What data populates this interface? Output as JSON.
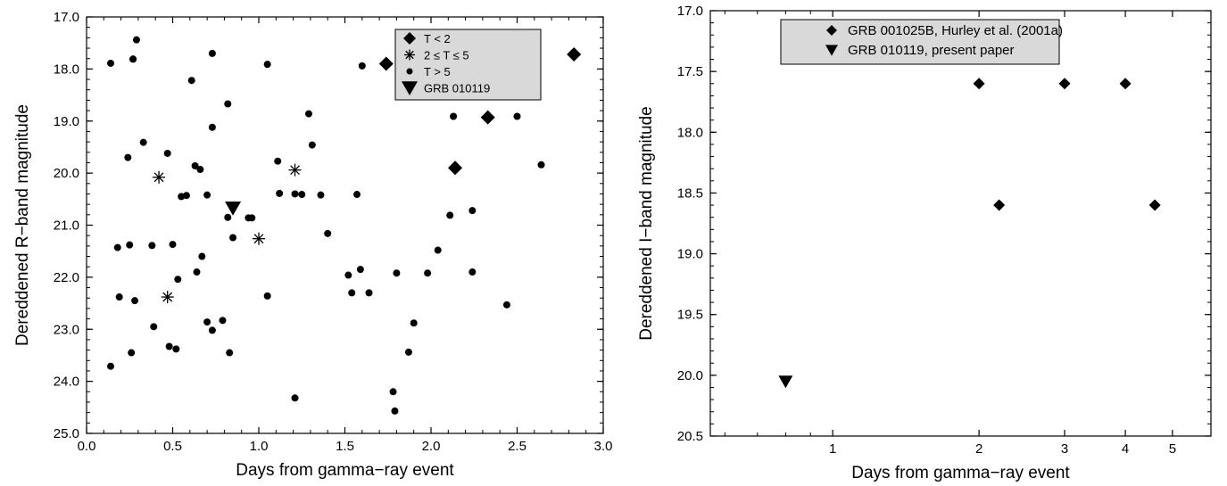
{
  "chart_data": [
    {
      "type": "scatter",
      "xlabel": "Days from gamma−ray event",
      "ylabel": "Dereddened R−band magnitude",
      "xlim": [
        0,
        3
      ],
      "ylim": [
        25,
        17
      ],
      "y_inverted": true,
      "x_ticks": [
        "0.0",
        "0.5",
        "1.0",
        "1.5",
        "2.0",
        "2.5",
        "3.0"
      ],
      "y_ticks": [
        "17.0",
        "18.0",
        "19.0",
        "20.0",
        "21.0",
        "22.0",
        "23.0",
        "24.0",
        "25.0"
      ],
      "legend_position": "top-right",
      "series": [
        {
          "name": "T < 2",
          "marker": "diamond",
          "x": [
            1.74,
            2.14,
            2.33,
            2.83
          ],
          "y": [
            17.9,
            19.9,
            18.93,
            17.72
          ]
        },
        {
          "name": "2 ≤ T ≤ 5",
          "marker": "asterisk",
          "x": [
            0.42,
            0.47,
            1.0,
            1.21
          ],
          "y": [
            20.08,
            22.38,
            21.26,
            19.94
          ]
        },
        {
          "name": "T > 5",
          "marker": "dot",
          "x": [
            0.14,
            0.27,
            0.29,
            0.27,
            0.61,
            0.73,
            0.82,
            1.05,
            1.29,
            1.6,
            2.13,
            2.5,
            0.73,
            0.33,
            0.24,
            0.47,
            1.31,
            0.63,
            0.66,
            0.96,
            2.64,
            1.11,
            1.21,
            0.55,
            0.58,
            0.7,
            1.12,
            1.36,
            1.57,
            1.25,
            0.82,
            0.94,
            2.11,
            2.24,
            0.18,
            0.25,
            0.38,
            0.5,
            0.85,
            1.4,
            2.04,
            0.67,
            0.53,
            0.64,
            1.05,
            1.52,
            1.59,
            1.8,
            1.98,
            2.24,
            0.19,
            0.28,
            1.54,
            1.64,
            0.7,
            0.79,
            1.9,
            0.39,
            0.73,
            2.44,
            0.48,
            0.52,
            0.26,
            0.83,
            1.87,
            0.14,
            1.21,
            1.78,
            1.79
          ],
          "y": [
            17.89,
            17.81,
            17.44,
            17.81,
            18.22,
            17.7,
            18.67,
            17.91,
            18.86,
            17.94,
            18.91,
            18.91,
            19.12,
            19.41,
            19.7,
            19.62,
            19.46,
            19.86,
            19.93,
            20.86,
            19.84,
            19.77,
            20.4,
            20.45,
            20.43,
            20.42,
            20.39,
            20.42,
            20.41,
            20.41,
            20.85,
            20.86,
            20.81,
            20.72,
            21.43,
            21.38,
            21.39,
            21.37,
            21.24,
            21.16,
            21.48,
            21.6,
            22.04,
            21.9,
            22.36,
            21.96,
            21.85,
            21.92,
            21.92,
            21.9,
            22.38,
            22.45,
            22.3,
            22.3,
            22.86,
            22.83,
            22.88,
            22.95,
            23.02,
            22.53,
            23.33,
            23.38,
            23.45,
            23.45,
            23.44,
            23.71,
            24.32,
            24.2,
            24.57
          ]
        },
        {
          "name": "GRB 010119",
          "marker": "triangle-down",
          "x": [
            0.85
          ],
          "y": [
            20.67
          ]
        }
      ]
    },
    {
      "type": "scatter",
      "xlabel": "Days from gamma−ray event",
      "ylabel": "Dereddened I−band magnitude",
      "x_scale": "log",
      "xlim": [
        0.56,
        6.0
      ],
      "ylim": [
        20.5,
        17.0
      ],
      "y_inverted": true,
      "x_ticks": [
        1,
        2,
        3,
        4,
        5
      ],
      "y_ticks": [
        "17.0",
        "17.5",
        "18.0",
        "18.5",
        "19.0",
        "19.5",
        "20.0",
        "20.5"
      ],
      "legend_position": "top-left",
      "series": [
        {
          "name": "GRB 001025B, Hurley et al. (2001a)",
          "marker": "diamond",
          "x": [
            2.0,
            2.2,
            3.0,
            4.0,
            4.6
          ],
          "y": [
            17.6,
            18.6,
            17.6,
            17.6,
            18.6
          ]
        },
        {
          "name": "GRB 010119, present paper",
          "marker": "triangle-down",
          "x": [
            0.8
          ],
          "y": [
            20.05
          ]
        }
      ]
    }
  ]
}
